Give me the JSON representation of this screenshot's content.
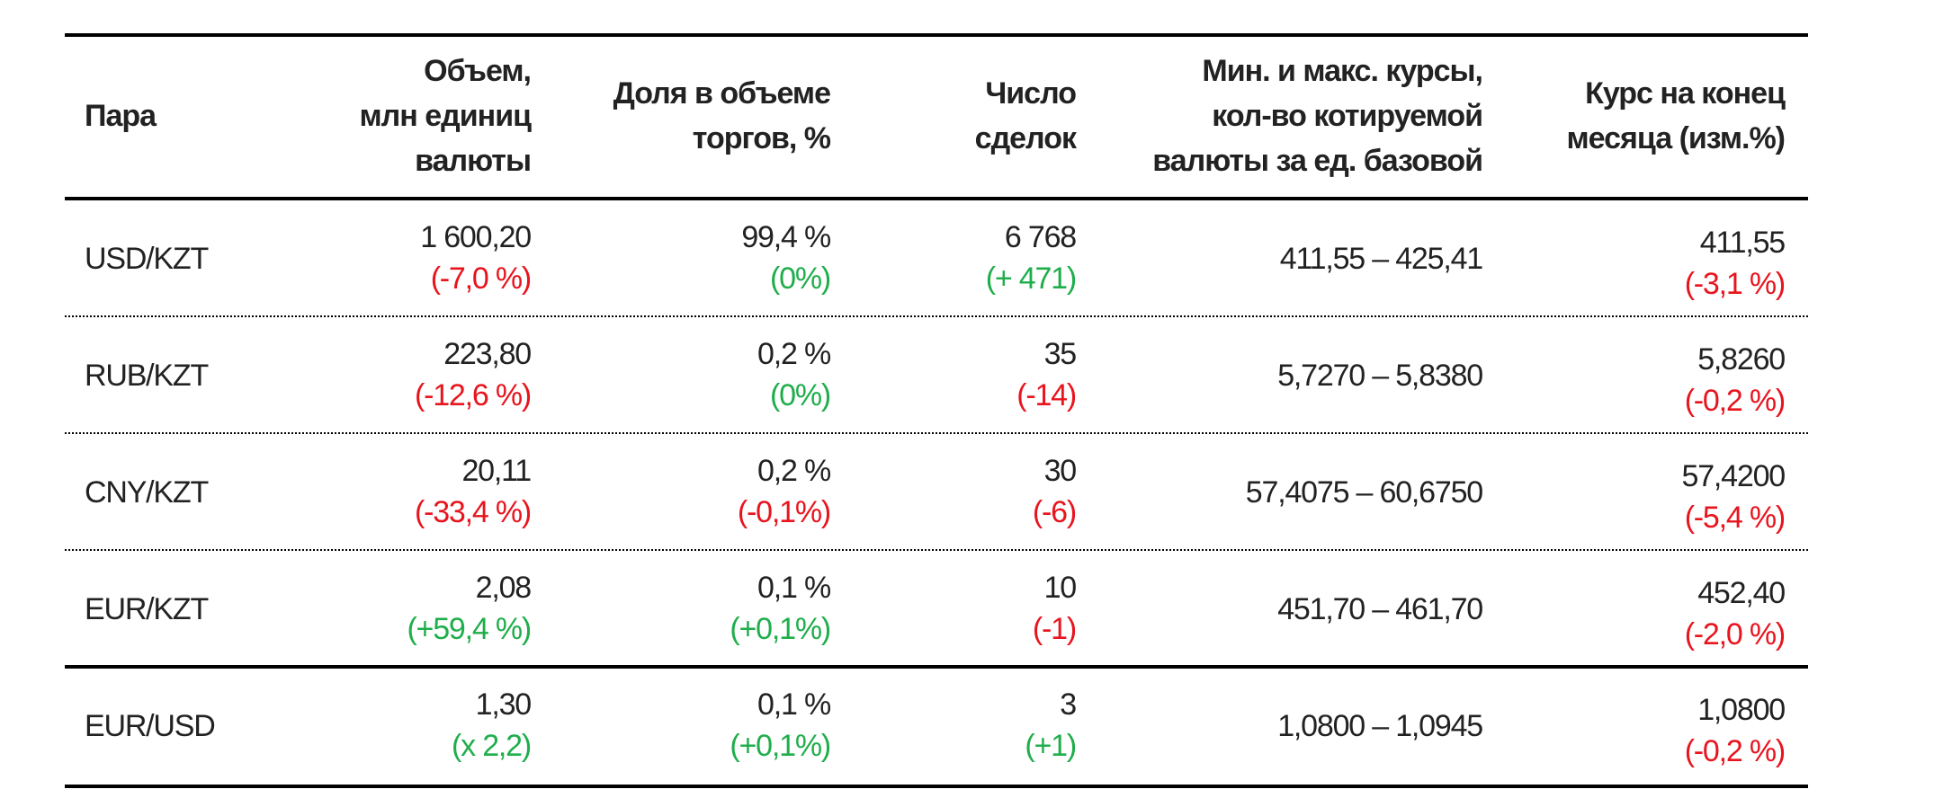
{
  "table": {
    "header": [
      [
        "Пара"
      ],
      [
        "Объем,",
        "млн единиц",
        "валюты"
      ],
      [
        "Доля в объеме",
        "торгов, %"
      ],
      [
        "Число",
        "сделок"
      ],
      [
        "Мин. и макс. курсы,",
        "кол-во котируемой",
        "валюты за ед. базовой"
      ],
      [
        "Курс на конец",
        "месяца (изм.%)"
      ]
    ],
    "rows": [
      {
        "pair": "USD/KZT",
        "volume": {
          "value": "1 600,20",
          "change": "(-7,0 %)",
          "color": "#e8141e"
        },
        "share": {
          "value": "99,4 %",
          "change": "(0%)",
          "color": "#1fae4b"
        },
        "deals": {
          "value": "6 768",
          "change": "(+ 471)",
          "color": "#1fae4b"
        },
        "range": "411,55 – 425,41",
        "close": {
          "value": "411,55",
          "change": "(-3,1 %)",
          "color": "#e8141e"
        }
      },
      {
        "pair": "RUB/KZT",
        "volume": {
          "value": "223,80",
          "change": "(-12,6 %)",
          "color": "#e8141e"
        },
        "share": {
          "value": "0,2 %",
          "change": "(0%)",
          "color": "#1fae4b"
        },
        "deals": {
          "value": "35",
          "change": "(-14)",
          "color": "#e8141e"
        },
        "range": "5,7270 – 5,8380",
        "close": {
          "value": "5,8260",
          "change": "(-0,2 %)",
          "color": "#e8141e"
        }
      },
      {
        "pair": "CNY/KZT",
        "volume": {
          "value": "20,11",
          "change": "(-33,4 %)",
          "color": "#e8141e"
        },
        "share": {
          "value": "0,2 %",
          "change": "(-0,1%)",
          "color": "#e8141e"
        },
        "deals": {
          "value": "30",
          "change": "(-6)",
          "color": "#e8141e"
        },
        "range": "57,4075 – 60,6750",
        "close": {
          "value": "57,4200",
          "change": "(-5,4 %)",
          "color": "#e8141e"
        }
      },
      {
        "pair": "EUR/KZT",
        "volume": {
          "value": "2,08",
          "change": "(+59,4 %)",
          "color": "#1fae4b"
        },
        "share": {
          "value": "0,1 %",
          "change": "(+0,1%)",
          "color": "#1fae4b"
        },
        "deals": {
          "value": "10",
          "change": "(-1)",
          "color": "#e8141e"
        },
        "range": "451,70 – 461,70",
        "close": {
          "value": "452,40",
          "change": "(-2,0 %)",
          "color": "#e8141e"
        }
      },
      {
        "pair": "EUR/USD",
        "volume": {
          "value": "1,30",
          "change": "(x 2,2)",
          "color": "#1fae4b"
        },
        "share": {
          "value": "0,1 %",
          "change": "(+0,1%)",
          "color": "#1fae4b"
        },
        "deals": {
          "value": "3",
          "change": "(+1)",
          "color": "#1fae4b"
        },
        "range": "1,0800 – 1,0945",
        "close": {
          "value": "1,0800",
          "change": "(-0,2 %)",
          "color": "#e8141e"
        }
      }
    ]
  }
}
